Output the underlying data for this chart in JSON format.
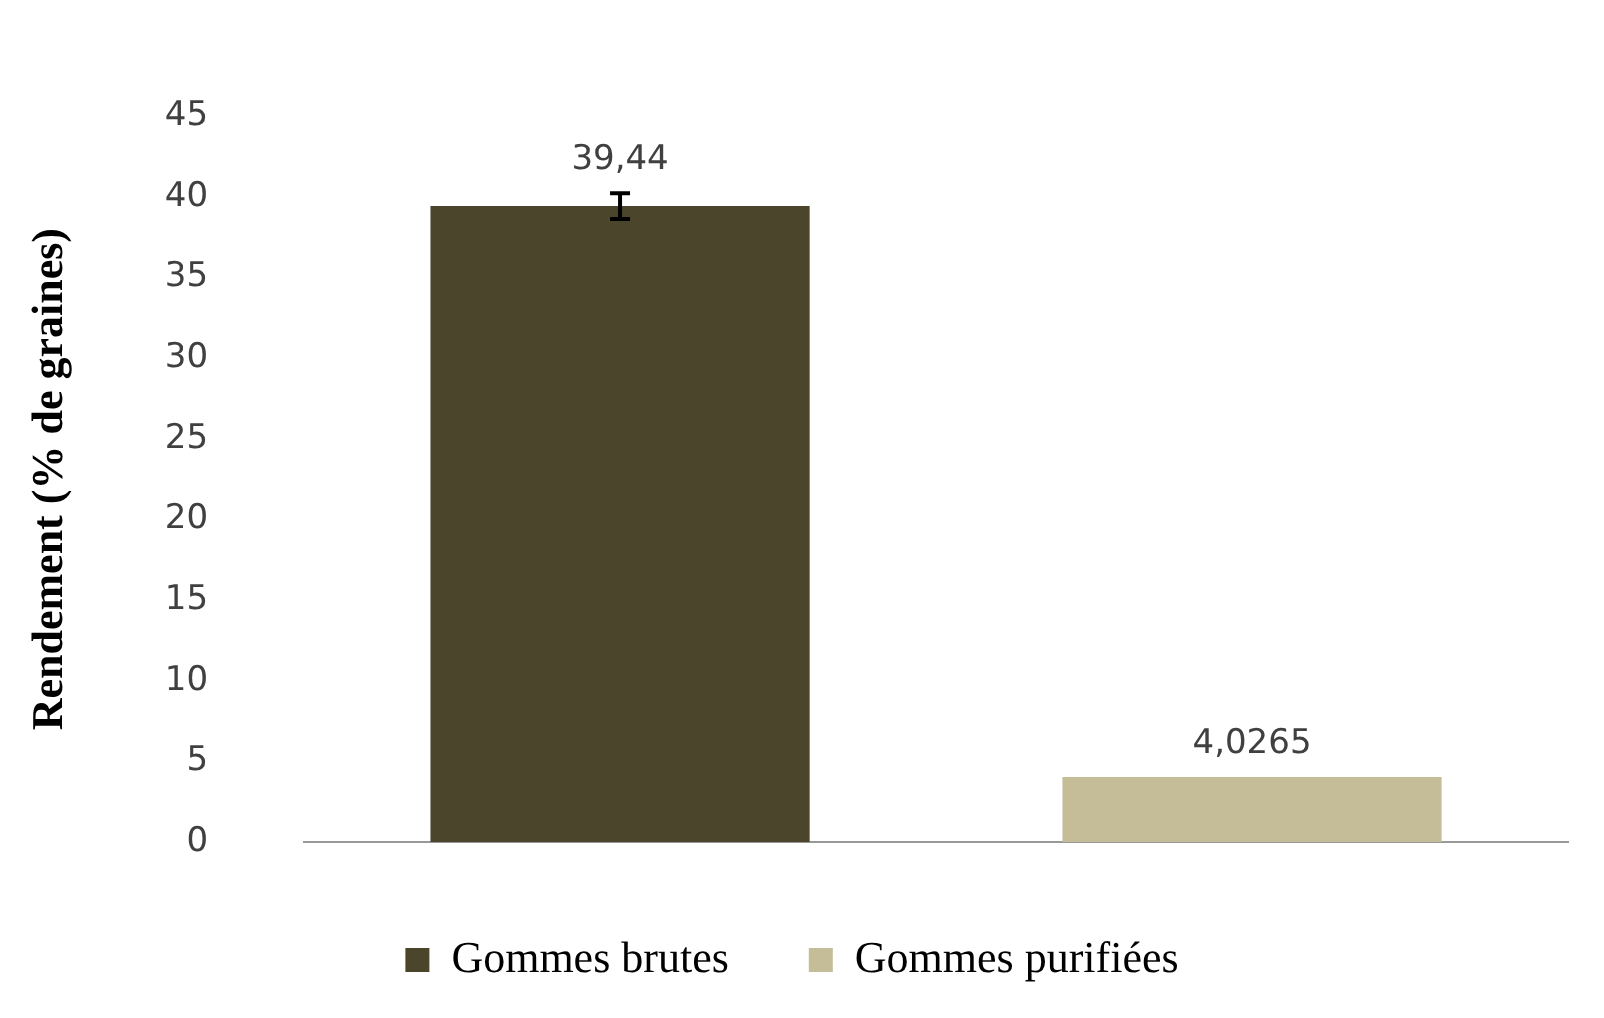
{
  "chart_data": {
    "type": "bar",
    "ylabel": "Rendement (% de graines)",
    "categories": [
      null
    ],
    "series": [
      {
        "name": "Gommes brutes",
        "color": "#4b452c",
        "values": [
          39.44
        ],
        "value_labels": [
          "39,44"
        ],
        "errors": [
          0.8
        ]
      },
      {
        "name": "Gommes purifiées",
        "color": "#c4bd97",
        "values": [
          4.0265
        ],
        "value_labels": [
          "4,0265"
        ]
      }
    ],
    "ylim": [
      0,
      45
    ],
    "yticks": [
      0,
      5,
      10,
      15,
      20,
      25,
      30,
      35,
      40,
      45
    ],
    "grid": false,
    "legend": "bottom"
  }
}
